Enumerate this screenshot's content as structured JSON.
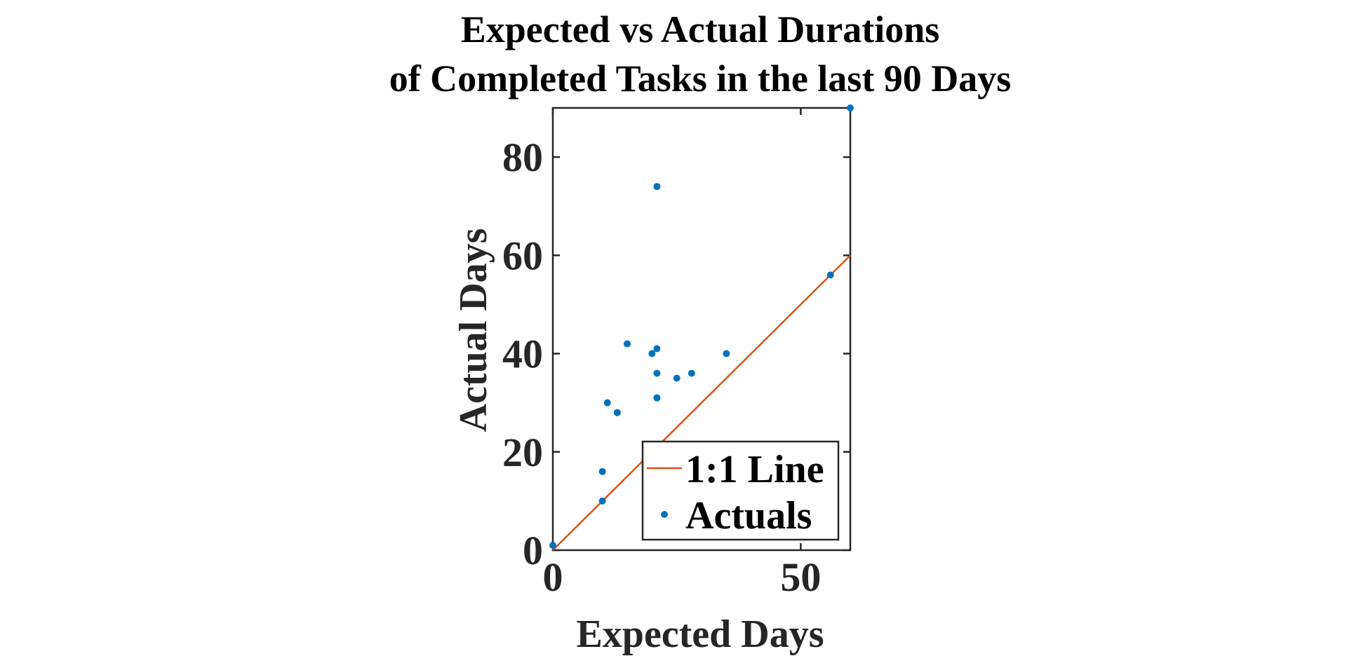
{
  "chart_data": {
    "type": "scatter",
    "title": [
      "Expected vs Actual Durations",
      "of Completed Tasks in the last 90 Days"
    ],
    "xlabel": "Expected Days",
    "ylabel": "Actual Days",
    "xlim": [
      0,
      60
    ],
    "ylim": [
      0,
      90
    ],
    "xticks": [
      0,
      50
    ],
    "yticks": [
      0,
      20,
      40,
      60,
      80
    ],
    "grid": false,
    "legend_position": "bottom-right",
    "series": [
      {
        "name": "1:1 Line",
        "type": "line",
        "color": "#D95319",
        "x": [
          0,
          60
        ],
        "y": [
          0,
          60
        ]
      },
      {
        "name": "Actuals",
        "type": "scatter",
        "color": "#0072BD",
        "x": [
          0,
          10,
          10,
          11,
          13,
          15,
          20,
          21,
          21,
          21,
          21,
          21,
          25,
          28,
          35,
          56,
          60
        ],
        "y": [
          1,
          10,
          16,
          30,
          28,
          42,
          40,
          74,
          41,
          36,
          31,
          31,
          35,
          36,
          40,
          56,
          90
        ]
      }
    ]
  }
}
